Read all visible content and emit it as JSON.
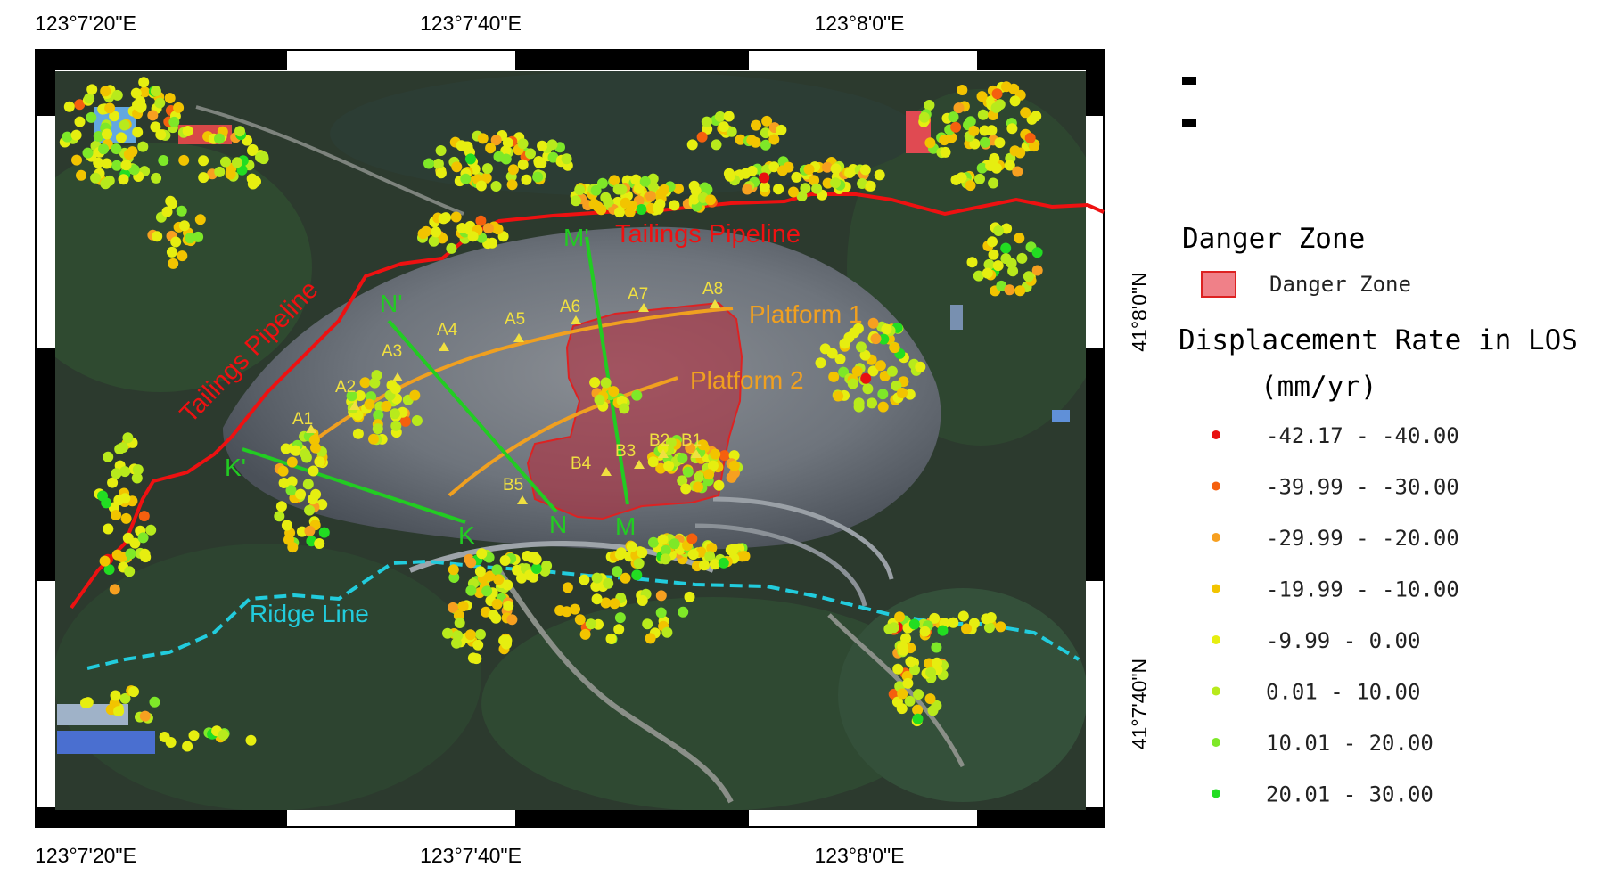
{
  "coordinates": {
    "top": [
      "123°7'20\"E",
      "123°7'40\"E",
      "123°8'0\"E"
    ],
    "bottom": [
      "123°7'20\"E",
      "123°7'40\"E",
      "123°8'0\"E"
    ],
    "right": [
      "41°8'0\"N",
      "41°7'40\"N"
    ]
  },
  "map_labels": {
    "pipeline_top": "Tailings Pipeline",
    "pipeline_left": "Tailings Pipeline",
    "platform_1": "Platform 1",
    "platform_2": "Platform 2",
    "ridge_line": "Ridge Line",
    "profile_m_start": "M'",
    "profile_m_end": "M",
    "profile_n_start": "N'",
    "profile_n_end": "N",
    "profile_k_start": "K'",
    "profile_k_end": "K",
    "points_a": [
      "A1",
      "A2",
      "A3",
      "A4",
      "A5",
      "A6",
      "A7",
      "A8"
    ],
    "points_b": [
      "B1",
      "B2",
      "B3",
      "B4",
      "B5"
    ]
  },
  "legend": {
    "danger_title": "Danger Zone",
    "danger_item": "Danger Zone",
    "displacement_title": "Displacement Rate in LOS",
    "units": "(mm/yr)",
    "classes": [
      {
        "range": "-42.17 - -40.00",
        "color": "#e81010"
      },
      {
        "range": "-39.99 - -30.00",
        "color": "#f5600e"
      },
      {
        "range": "-29.99 - -20.00",
        "color": "#f7a020"
      },
      {
        "range": "-19.99 - -10.00",
        "color": "#f2c400"
      },
      {
        "range": "-9.99 - 0.00",
        "color": "#e6ee10"
      },
      {
        "range": "0.01 - 10.00",
        "color": "#b8ea1c"
      },
      {
        "range": "10.01 - 20.00",
        "color": "#7ee828"
      },
      {
        "range": "20.01 - 30.00",
        "color": "#22dd22"
      }
    ]
  },
  "colors": {
    "pipeline": "#ee1111",
    "platform": "#f0a020",
    "profile": "#22cc22",
    "ridge": "#22ccdd",
    "danger_fill": "#b03040",
    "label_yellow": "#f0e040"
  }
}
